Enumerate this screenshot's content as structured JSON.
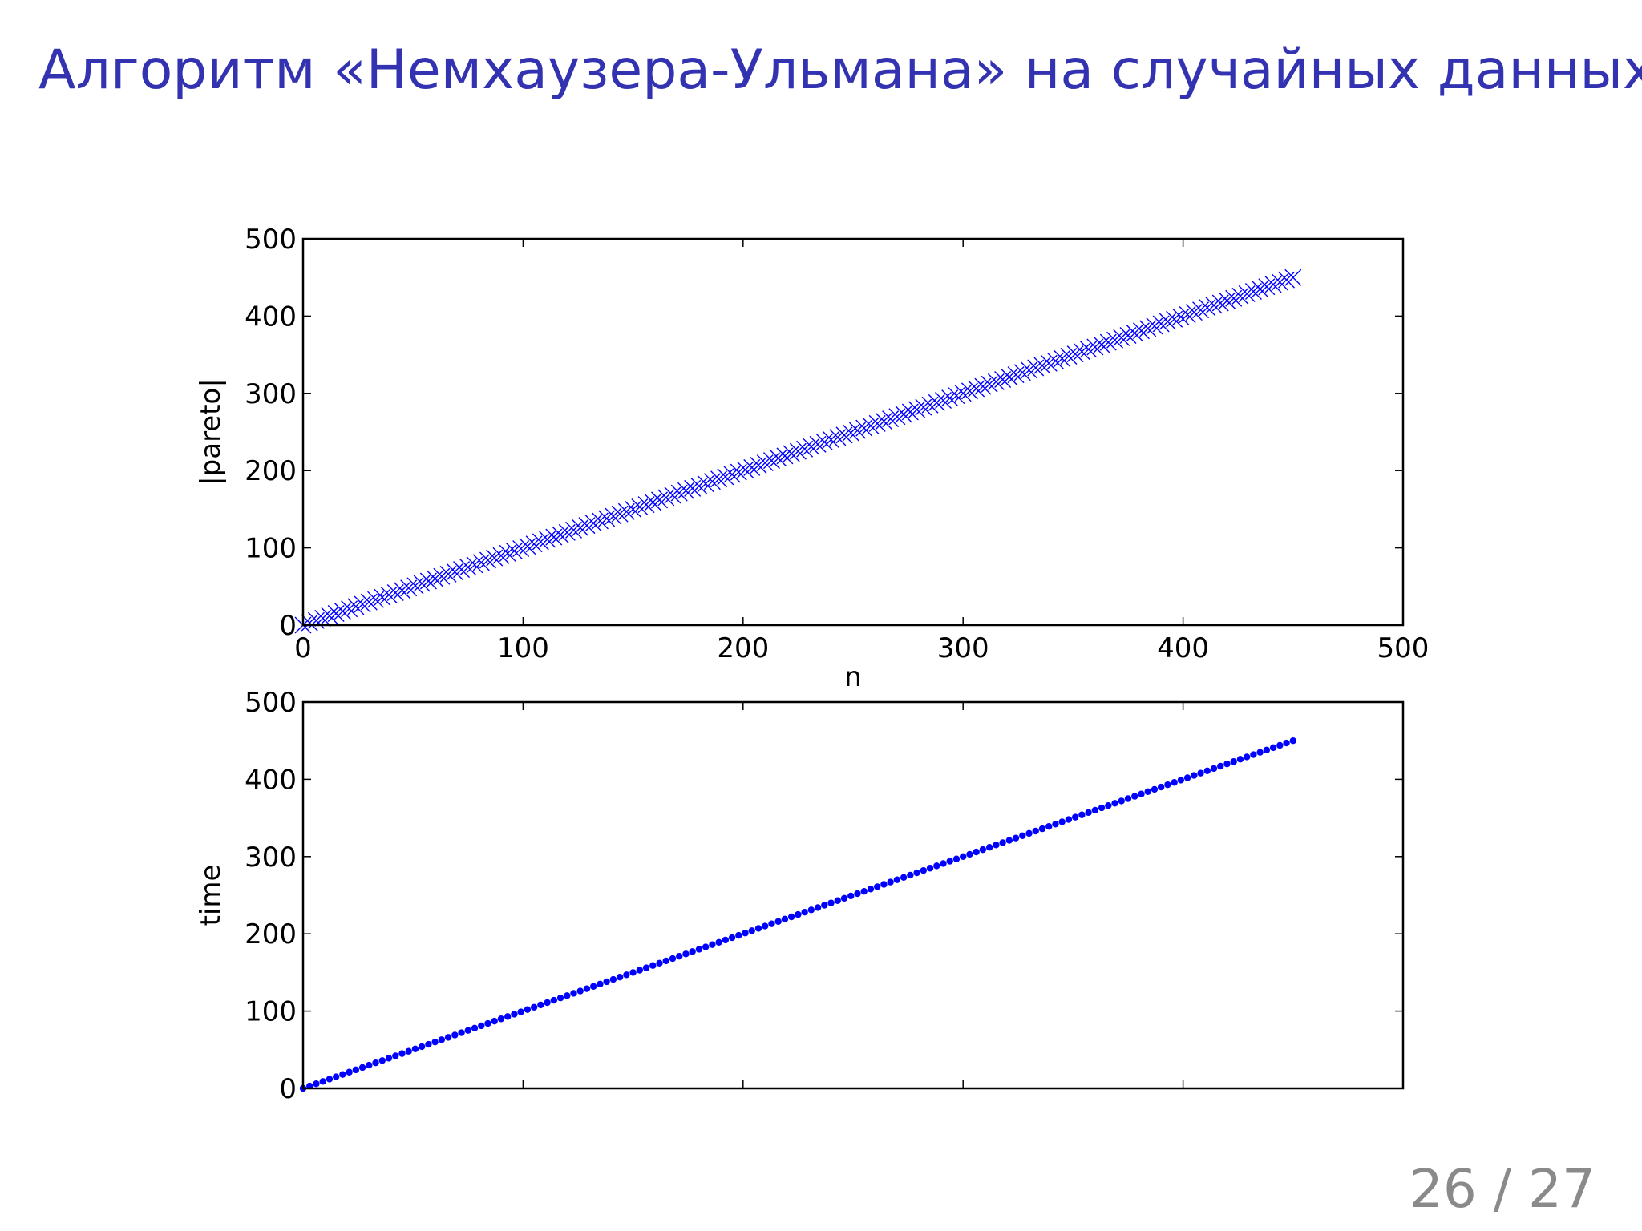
{
  "slide": {
    "title": "Алгоритм «Немхаузера-Ульмана» на случайных данных",
    "page_number": "26 / 27"
  },
  "chart_data": [
    {
      "type": "scatter",
      "xlabel": "n",
      "ylabel": "|pareto|",
      "xlim": [
        0,
        500
      ],
      "ylim": [
        0,
        500
      ],
      "xticks": [
        0,
        100,
        200,
        300,
        400,
        500
      ],
      "yticks": [
        0,
        100,
        200,
        300,
        400,
        500
      ],
      "marker": "x",
      "color": "#0000ff",
      "points": {
        "x_from": 0,
        "x_to": 452,
        "x_step": 3,
        "y_equals_x": true
      },
      "grid": false
    },
    {
      "type": "scatter",
      "xlabel": "",
      "ylabel": "time",
      "xlim": [
        0,
        500
      ],
      "ylim": [
        0,
        500
      ],
      "xticks": [
        0,
        100,
        200,
        300,
        400,
        500
      ],
      "yticks": [
        0,
        100,
        200,
        300,
        400,
        500
      ],
      "show_xtick_labels": false,
      "marker": "dot",
      "color": "#0000ff",
      "points": {
        "x_from": 0,
        "x_to": 452,
        "x_step": 3,
        "y_equals_x": true
      },
      "grid": false
    }
  ]
}
